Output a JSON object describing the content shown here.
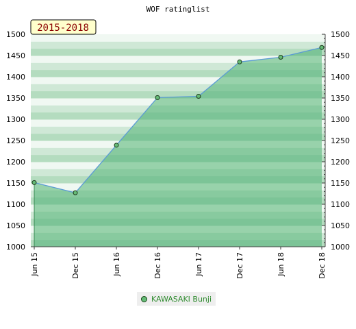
{
  "chart_data": {
    "type": "area",
    "title": "WOF ratinglist",
    "range_label": "2015-2018",
    "categories": [
      "Jun 15",
      "Dec 15",
      "Jun 16",
      "Dec 16",
      "Jun 17",
      "Dec 17",
      "Jun 18",
      "Dec 18"
    ],
    "series": [
      {
        "name": "KAWASAKI Bunji",
        "values": [
          1151,
          1127,
          1239,
          1351,
          1354,
          1435,
          1446,
          1469
        ]
      }
    ],
    "ylim": [
      1000,
      1500
    ],
    "yticks": [
      1000,
      1050,
      1100,
      1150,
      1200,
      1250,
      1300,
      1350,
      1400,
      1450,
      1500
    ],
    "grid": true,
    "legend_position": "bottom",
    "colors": {
      "line": "#5b9bd5",
      "fill": "#6bbf85",
      "marker": "#66bb77"
    }
  }
}
